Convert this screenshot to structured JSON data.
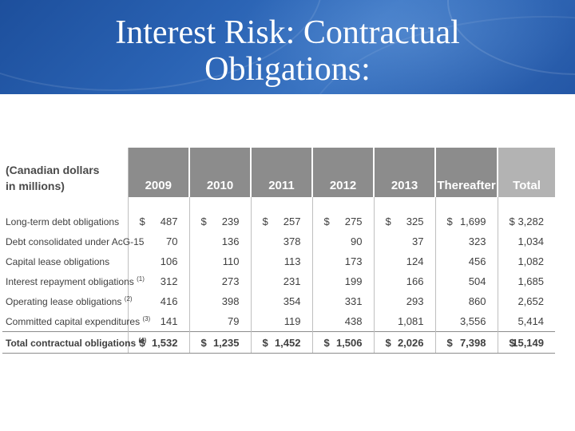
{
  "slide": {
    "title_line1": "Interest Risk: Contractual",
    "title_line2": "Obligations:",
    "banner_color": "#2a63b4"
  },
  "table": {
    "header_label_line1": "(Canadian dollars",
    "header_label_line2": "in millions)",
    "columns": [
      "2009",
      "2010",
      "2011",
      "2012",
      "2013",
      "Thereafter",
      "Total"
    ],
    "header_color": "#8c8c8c",
    "total_header_color": "#b3b3b3",
    "rows": [
      {
        "label": "Long-term debt obligations",
        "note": "",
        "values": [
          "487",
          "239",
          "257",
          "275",
          "325",
          "1,699",
          "3,282"
        ]
      },
      {
        "label": "Debt consolidated under AcG-15",
        "note": "",
        "values": [
          "70",
          "136",
          "378",
          "90",
          "37",
          "323",
          "1,034"
        ]
      },
      {
        "label": "Capital lease obligations",
        "note": "",
        "values": [
          "106",
          "110",
          "113",
          "173",
          "124",
          "456",
          "1,082"
        ]
      },
      {
        "label": "Interest repayment obligations",
        "note": "(1)",
        "values": [
          "312",
          "273",
          "231",
          "199",
          "166",
          "504",
          "1,685"
        ]
      },
      {
        "label": "Operating lease obligations",
        "note": "(2)",
        "values": [
          "416",
          "398",
          "354",
          "331",
          "293",
          "860",
          "2,652"
        ]
      },
      {
        "label": "Committed capital expenditures",
        "note": "(3)",
        "values": [
          "141",
          "79",
          "119",
          "438",
          "1,081",
          "3,556",
          "5,414"
        ]
      }
    ],
    "total_row": {
      "label": "Total contractual obligations",
      "note": "(4)",
      "values": [
        "1,532",
        "1,235",
        "1,452",
        "1,506",
        "2,026",
        "7,398",
        "15,149"
      ]
    },
    "currency_symbol": "$"
  }
}
